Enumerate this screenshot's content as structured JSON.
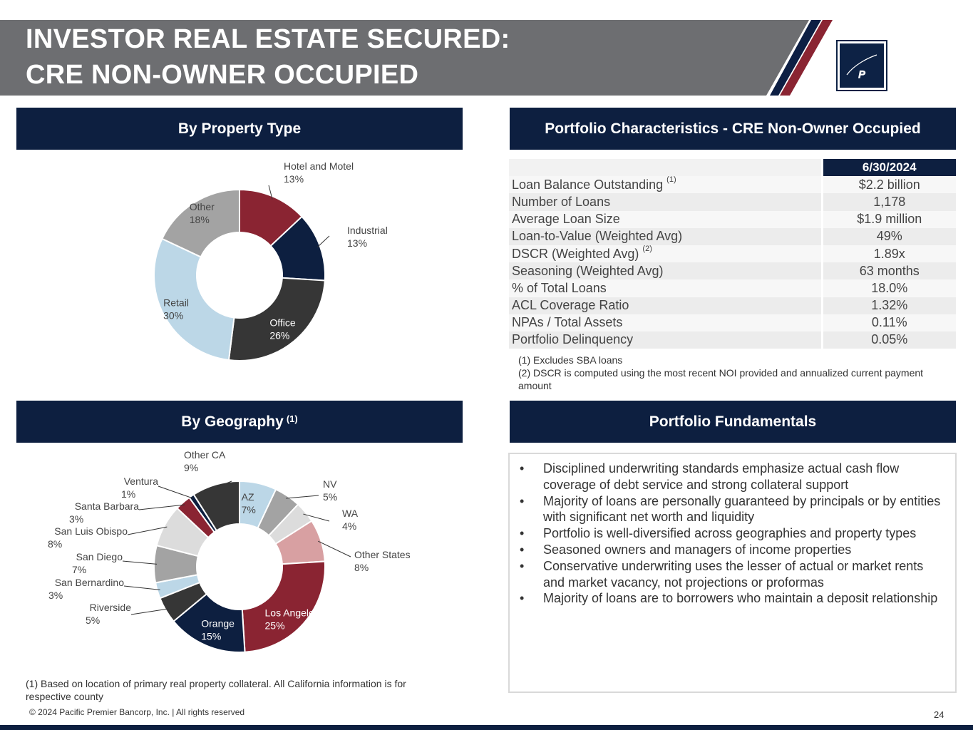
{
  "title": {
    "line1": "INVESTOR REAL ESTATE SECURED:",
    "line2": "CRE NON-OWNER OCCUPIED"
  },
  "logo": {
    "icon": "pacific-premier-monogram",
    "letter": "P"
  },
  "colors": {
    "navy": "#0d1f40",
    "burgundy": "#8a2432",
    "gray_band": "#6d6e71"
  },
  "sections": {
    "property_type": "By Property Type",
    "portfolio_characteristics": "Portfolio Characteristics - CRE Non-Owner Occupied",
    "geography": "By Geography",
    "geography_sup": "(1)",
    "fundamentals": "Portfolio Fundamentals"
  },
  "chart_data": [
    {
      "type": "pie",
      "donut": true,
      "title": "By Property Type",
      "slices": [
        {
          "label": "Hotel and Motel",
          "value": 13,
          "color": "#8a2432"
        },
        {
          "label": "Industrial",
          "value": 13,
          "color": "#0d1f40"
        },
        {
          "label": "Office",
          "value": 26,
          "color": "#363636"
        },
        {
          "label": "Retail",
          "value": 30,
          "color": "#bcd7e7"
        },
        {
          "label": "Other",
          "value": 18,
          "color": "#a3a3a3"
        }
      ]
    },
    {
      "type": "pie",
      "donut": true,
      "title": "By Geography",
      "slices": [
        {
          "label": "AZ",
          "value": 7,
          "color": "#bcd7e7"
        },
        {
          "label": "NV",
          "value": 5,
          "color": "#a3a3a3"
        },
        {
          "label": "WA",
          "value": 4,
          "color": "#dcdcdc"
        },
        {
          "label": "Other States",
          "value": 8,
          "color": "#d8a0a2"
        },
        {
          "label": "Los Angeles",
          "value": 25,
          "color": "#8a2432"
        },
        {
          "label": "Orange",
          "value": 15,
          "color": "#0d1f40"
        },
        {
          "label": "Riverside",
          "value": 5,
          "color": "#363636"
        },
        {
          "label": "San Bernardino",
          "value": 3,
          "color": "#bcd7e7"
        },
        {
          "label": "San Diego",
          "value": 7,
          "color": "#a3a3a3"
        },
        {
          "label": "San Luis Obispo",
          "value": 8,
          "color": "#dcdcdc"
        },
        {
          "label": "Santa Barbara",
          "value": 3,
          "color": "#8a2432"
        },
        {
          "label": "Ventura",
          "value": 1,
          "color": "#0d1f40"
        },
        {
          "label": "Other CA",
          "value": 9,
          "color": "#363636"
        }
      ]
    }
  ],
  "table": {
    "column": "6/30/2024",
    "rows": [
      {
        "label": "Loan Balance Outstanding",
        "sup": "(1)",
        "value": "$2.2 billion"
      },
      {
        "label": "Number of Loans",
        "sup": "",
        "value": "1,178"
      },
      {
        "label": "Average Loan Size",
        "sup": "",
        "value": "$1.9 million"
      },
      {
        "label": "Loan-to-Value (Weighted Avg)",
        "sup": "",
        "value": "49%"
      },
      {
        "label": "DSCR (Weighted Avg)",
        "sup": "(2)",
        "value": "1.89x"
      },
      {
        "label": "Seasoning (Weighted Avg)",
        "sup": "",
        "value": "63 months"
      },
      {
        "label": "% of Total Loans",
        "sup": "",
        "value": "18.0%"
      },
      {
        "label": "ACL Coverage Ratio",
        "sup": "",
        "value": "1.32%"
      },
      {
        "label": "NPAs / Total Assets",
        "sup": "",
        "value": "0.11%"
      },
      {
        "label": "Portfolio Delinquency",
        "sup": "",
        "value": "0.05%"
      }
    ]
  },
  "table_notes": {
    "n1": "(1) Excludes SBA loans",
    "n2": "(2) DSCR is computed using the most recent NOI provided and annualized current payment amount"
  },
  "fundamentals": [
    "Disciplined underwriting standards emphasize actual cash flow coverage of debt service and strong collateral support",
    "Majority of loans are personally guaranteed by principals or by entities with significant net worth and liquidity",
    "Portfolio is well-diversified across geographies and property types",
    "Seasoned owners and managers of income properties",
    "Conservative underwriting uses the lesser of actual or market rents and market vacancy, not projections or proformas",
    "Majority of loans are to borrowers who maintain a deposit relationship"
  ],
  "geo_footnote": "(1) Based on location of primary real property collateral. All California information is for respective county",
  "footer": {
    "copyright": "© 2024 Pacific Premier Bancorp, Inc. | All rights reserved",
    "page": "24"
  }
}
